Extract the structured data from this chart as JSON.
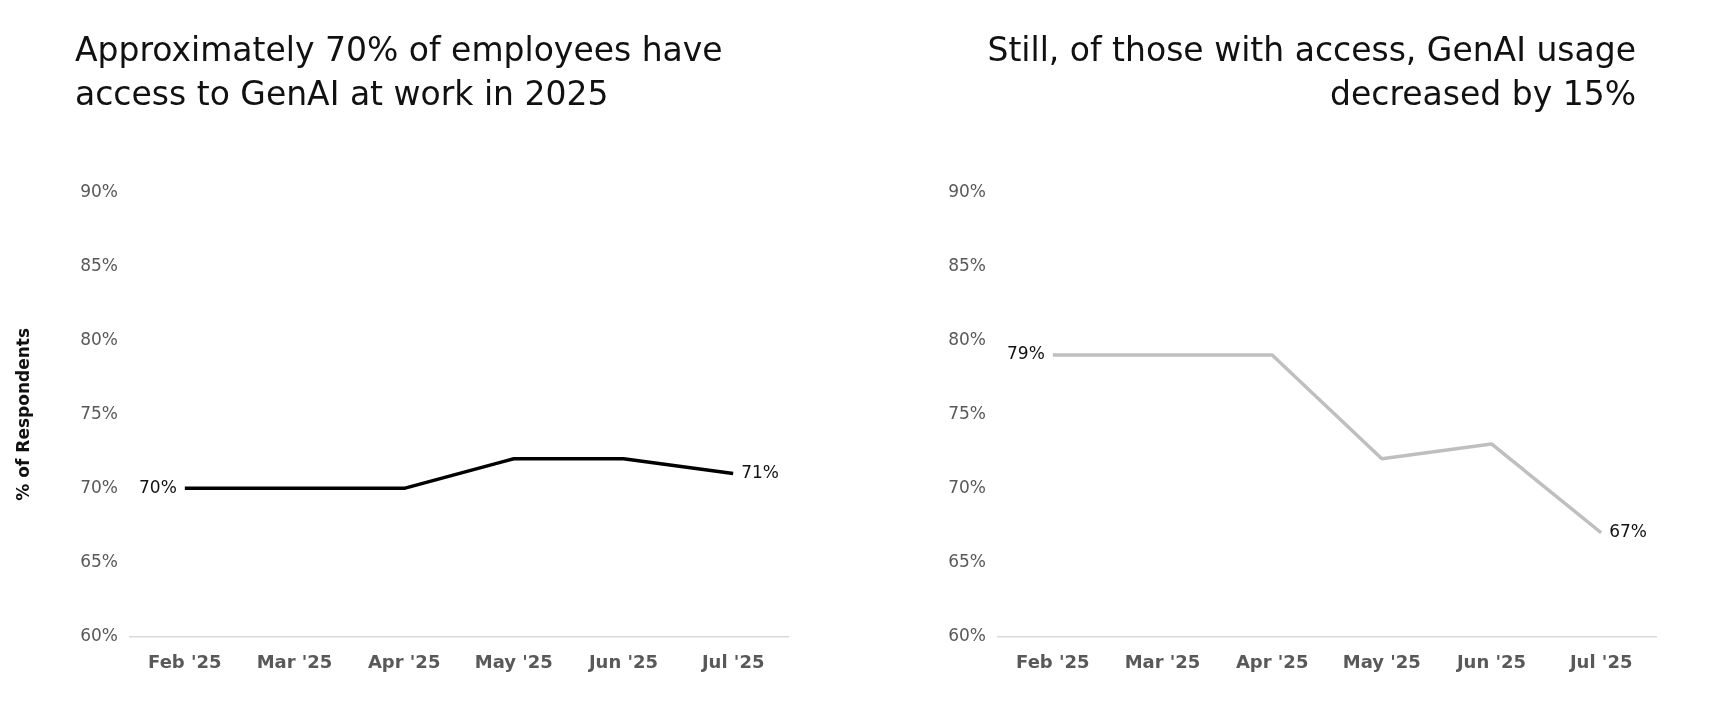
{
  "chart_data": [
    {
      "type": "line",
      "title": "Approximately 70% of employees have access to GenAI at work in 2025",
      "ylabel": "% of Respondents",
      "categories": [
        "Feb '25",
        "Mar '25",
        "Apr '25",
        "May '25",
        "Jun '25",
        "Jul '25"
      ],
      "series": [
        {
          "color": "#000000",
          "values": [
            70,
            70,
            70,
            72,
            72,
            71
          ],
          "value_labels": [
            "70%",
            null,
            null,
            null,
            null,
            "71%"
          ]
        }
      ],
      "ylim": [
        60,
        90
      ],
      "yticks": [
        {
          "value": 60,
          "label": "60%"
        },
        {
          "value": 65,
          "label": "65%"
        },
        {
          "value": 70,
          "label": "70%"
        },
        {
          "value": 75,
          "label": "75%"
        },
        {
          "value": 80,
          "label": "80%"
        },
        {
          "value": 85,
          "label": "85%"
        },
        {
          "value": 90,
          "label": "90%"
        }
      ],
      "grid": false,
      "legend": false
    },
    {
      "type": "line",
      "title": "Still, of those with access, GenAI usage decreased by 15%",
      "categories": [
        "Feb '25",
        "Mar '25",
        "Apr '25",
        "May '25",
        "Jun '25",
        "Jul '25"
      ],
      "series": [
        {
          "color": "#bfbfbf",
          "values": [
            79,
            79,
            79,
            72,
            73,
            67
          ],
          "value_labels": [
            "79%",
            null,
            null,
            null,
            null,
            "67%"
          ]
        }
      ],
      "ylim": [
        60,
        90
      ],
      "yticks": [
        {
          "value": 60,
          "label": "60%"
        },
        {
          "value": 65,
          "label": "65%"
        },
        {
          "value": 70,
          "label": "70%"
        },
        {
          "value": 75,
          "label": "75%"
        },
        {
          "value": 80,
          "label": "80%"
        },
        {
          "value": 85,
          "label": "85%"
        },
        {
          "value": 90,
          "label": "90%"
        }
      ],
      "grid": false,
      "legend": false
    }
  ]
}
